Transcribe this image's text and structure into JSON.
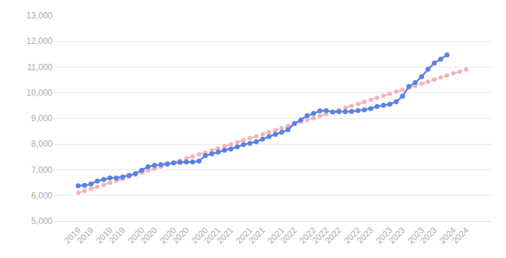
{
  "chart_data": {
    "type": "line",
    "categories": [
      "2019",
      null,
      "2019",
      null,
      null,
      "2019",
      null,
      "2019",
      null,
      null,
      "2020",
      null,
      "2020",
      null,
      null,
      "2020",
      null,
      "2020",
      null,
      null,
      "2020",
      null,
      "2021",
      null,
      "2021",
      null,
      null,
      "2021",
      null,
      "2021",
      null,
      null,
      "2021",
      null,
      "2022",
      null,
      null,
      "2022",
      null,
      "2022",
      null,
      "2022",
      null,
      null,
      "2022",
      null,
      "2023",
      null,
      null,
      "2023",
      null,
      "2023",
      null,
      null,
      "2023",
      null,
      "2023",
      null,
      null,
      "2024",
      null,
      "2024"
    ],
    "series": [
      {
        "color": "#5b80e6",
        "line_style": "solid",
        "marker": "circle",
        "values": [
          6380,
          6390,
          6450,
          6560,
          6620,
          6680,
          6680,
          6720,
          6780,
          6850,
          6980,
          7120,
          7170,
          7200,
          7230,
          7270,
          7290,
          7300,
          7300,
          7340,
          7550,
          7620,
          7690,
          7760,
          7810,
          7890,
          7980,
          8030,
          8090,
          8190,
          8290,
          8380,
          8460,
          8560,
          8800,
          8940,
          9100,
          9190,
          9290,
          9300,
          9250,
          9260,
          9260,
          9270,
          9300,
          9330,
          9380,
          9460,
          9510,
          9550,
          9650,
          9860,
          10240,
          10390,
          10620,
          10910,
          11150,
          11300,
          11470,
          null,
          null,
          null
        ]
      },
      {
        "color": "#f2a4a8",
        "line_style": "dashed",
        "marker": "circle",
        "values": [
          6100,
          6180,
          6260,
          6340,
          6410,
          6490,
          6570,
          6650,
          6730,
          6810,
          6890,
          6970,
          7040,
          7120,
          7200,
          7280,
          7360,
          7440,
          7520,
          7600,
          7670,
          7750,
          7830,
          7910,
          7990,
          8070,
          8150,
          8230,
          8300,
          8380,
          8460,
          8540,
          8620,
          8700,
          8780,
          8860,
          8930,
          9010,
          9090,
          9170,
          9250,
          9330,
          9410,
          9490,
          9560,
          9640,
          9720,
          9800,
          9880,
          9960,
          10040,
          10120,
          10190,
          10270,
          10350,
          10430,
          10510,
          10590,
          10670,
          10750,
          10820,
          10900
        ]
      }
    ],
    "ylim": [
      5000,
      13000
    ],
    "yticks": [
      {
        "value": 5000,
        "label": "5,000"
      },
      {
        "value": 6000,
        "label": "6,000"
      },
      {
        "value": 7000,
        "label": "7,000"
      },
      {
        "value": 8000,
        "label": "8,000"
      },
      {
        "value": 9000,
        "label": "9,000"
      },
      {
        "value": 10000,
        "label": "10,000"
      },
      {
        "value": 11000,
        "label": "11,000"
      },
      {
        "value": 12000,
        "label": "12,000"
      },
      {
        "value": 13000,
        "label": "13,000"
      }
    ],
    "grid": true
  }
}
